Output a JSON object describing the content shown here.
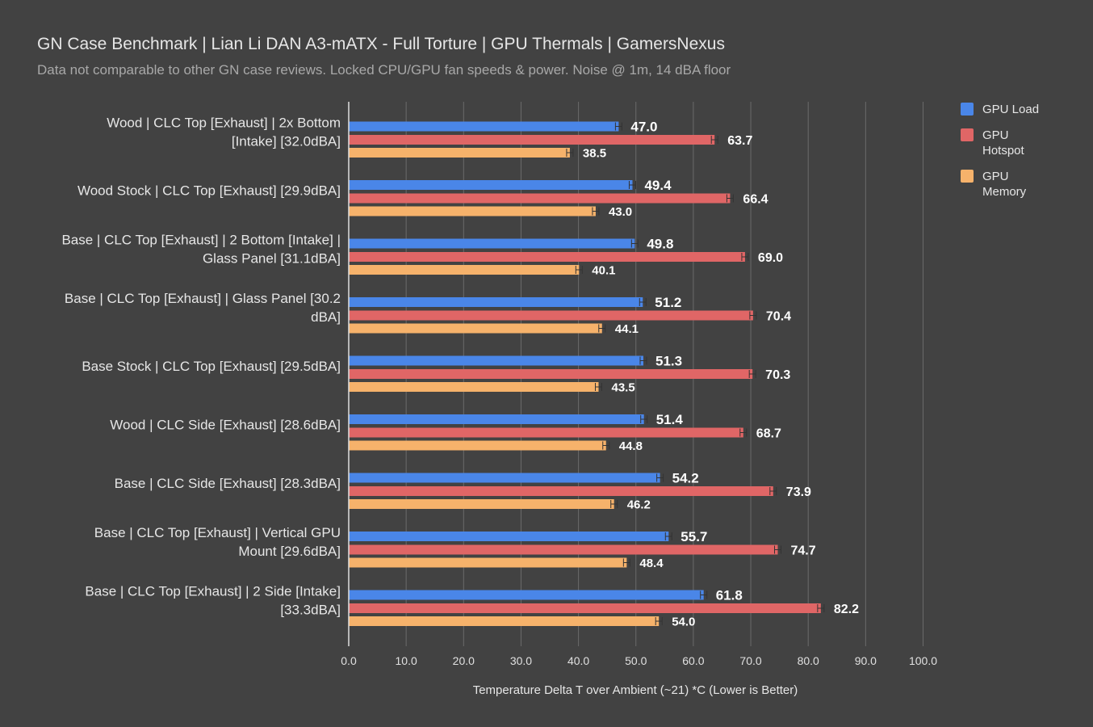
{
  "title": "GN Case Benchmark | Lian Li DAN A3-mATX - Full Torture | GPU Thermals | GamersNexus",
  "subtitle": "Data not comparable to other GN case reviews. Locked CPU/GPU fan speeds & power. Noise @ 1m, 14 dBA floor",
  "chart_data": {
    "type": "bar",
    "orientation": "horizontal",
    "categories": [
      [
        "Wood | CLC Top [Exhaust] | 2x Bottom",
        "[Intake] [32.0dBA]"
      ],
      [
        "Wood Stock | CLC Top [Exhaust] [29.9dBA]"
      ],
      [
        "Base | CLC Top [Exhaust] | 2 Bottom [Intake] |",
        "Glass Panel [31.1dBA]"
      ],
      [
        "Base | CLC Top [Exhaust] | Glass Panel [30.2",
        "dBA]"
      ],
      [
        "Base Stock | CLC Top [Exhaust] [29.5dBA]"
      ],
      [
        "Wood | CLC Side [Exhaust] [28.6dBA]"
      ],
      [
        "Base | CLC Side [Exhaust] [28.3dBA]"
      ],
      [
        "Base | CLC Top [Exhaust] | Vertical GPU",
        "Mount [29.6dBA]"
      ],
      [
        "Base | CLC Top [Exhaust] | 2 Side [Intake]",
        "[33.3dBA]"
      ]
    ],
    "series": [
      {
        "name": "GPU Load",
        "legend_lines": [
          "GPU Load"
        ],
        "color": "#4a86e8",
        "values": [
          47.0,
          49.4,
          49.8,
          51.2,
          51.3,
          51.4,
          54.2,
          55.7,
          61.8
        ],
        "labels": [
          "47.0",
          "49.4",
          "49.8",
          "51.2",
          "51.3",
          "51.4",
          "54.2",
          "55.7",
          "61.8"
        ]
      },
      {
        "name": "GPU Hotspot",
        "legend_lines": [
          "GPU",
          "Hotspot"
        ],
        "color": "#e06666",
        "values": [
          63.7,
          66.4,
          69.0,
          70.4,
          70.3,
          68.7,
          73.9,
          74.7,
          82.2
        ],
        "labels": [
          "63.7",
          "66.4",
          "69.0",
          "70.4",
          "70.3",
          "68.7",
          "73.9",
          "74.7",
          "82.2"
        ]
      },
      {
        "name": "GPU Memory",
        "legend_lines": [
          "GPU",
          "Memory"
        ],
        "color": "#f6b26b",
        "values": [
          38.5,
          43.0,
          40.1,
          44.1,
          43.5,
          44.8,
          46.2,
          48.4,
          54.0
        ],
        "labels": [
          "38.5",
          "43.0",
          "40.1",
          "44.1",
          "43.5",
          "44.8",
          "46.2",
          "48.4",
          "54.0"
        ]
      }
    ],
    "xlim": [
      0,
      100
    ],
    "xticks": [
      "0.0",
      "10.0",
      "20.0",
      "30.0",
      "40.0",
      "50.0",
      "60.0",
      "70.0",
      "80.0",
      "90.0",
      "100.0"
    ],
    "xlabel": "Temperature Delta T over Ambient (~21) *C (Lower is Better)",
    "ylabel": "",
    "grid": true,
    "error_bars": true,
    "legend_position": "top-right"
  }
}
